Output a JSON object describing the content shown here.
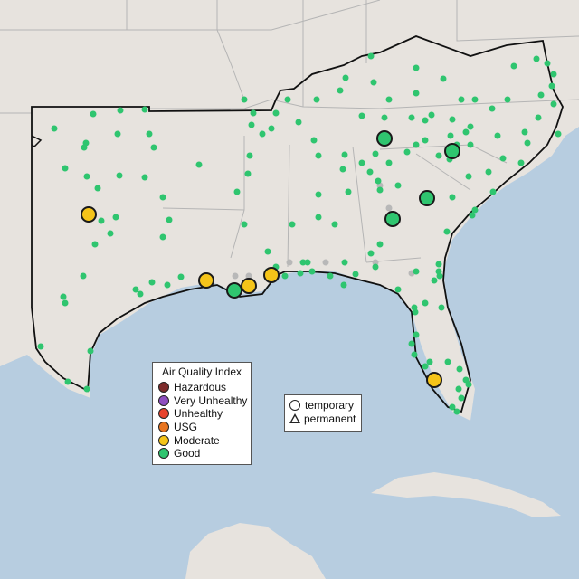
{
  "legend": {
    "title": "Air Quality Index",
    "categories": [
      {
        "label": "Hazardous",
        "color": "#7e2c2c"
      },
      {
        "label": "Very Unhealthy",
        "color": "#8e4fc0"
      },
      {
        "label": "Unhealthy",
        "color": "#e8432d"
      },
      {
        "label": "USG",
        "color": "#e8741f"
      },
      {
        "label": "Moderate",
        "color": "#f5c419"
      },
      {
        "label": "Good",
        "color": "#2fc56f"
      }
    ],
    "shapes": [
      {
        "label": "temporary",
        "icon": "circle-icon"
      },
      {
        "label": "permanent",
        "icon": "triangle-icon"
      }
    ]
  },
  "colors": {
    "land": "#e7e3de",
    "water": "#b7cde0",
    "region_outline": "#111111",
    "state_border": "#b5b5b5"
  }
}
